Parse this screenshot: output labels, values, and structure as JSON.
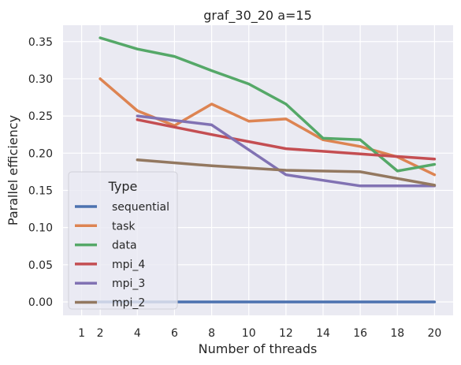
{
  "chart_data": {
    "type": "line",
    "title": "graf_30_20 a=15",
    "xlabel": "Number of threads",
    "ylabel": "Parallel efficiency",
    "xlim": [
      0,
      21
    ],
    "ylim": [
      -0.018,
      0.372
    ],
    "xticks": [
      1,
      2,
      4,
      6,
      8,
      10,
      12,
      14,
      16,
      18,
      20
    ],
    "yticks": [
      0.0,
      0.05,
      0.1,
      0.15,
      0.2,
      0.25,
      0.3,
      0.35
    ],
    "ytick_labels": [
      "0.00",
      "0.05",
      "0.10",
      "0.15",
      "0.20",
      "0.25",
      "0.30",
      "0.35"
    ],
    "grid": true,
    "legend": {
      "title": "Type",
      "placement": "lower-left"
    },
    "series": [
      {
        "name": "sequential",
        "color": "#4c72b0",
        "x": [
          1,
          2,
          4,
          6,
          8,
          10,
          12,
          14,
          16,
          18,
          20
        ],
        "y": [
          0,
          0,
          0,
          0,
          0,
          0,
          0,
          0,
          0,
          0,
          0
        ]
      },
      {
        "name": "task",
        "color": "#dd8452",
        "x": [
          2,
          4,
          6,
          8,
          10,
          12,
          14,
          16,
          18,
          20
        ],
        "y": [
          0.3,
          0.257,
          0.237,
          0.266,
          0.243,
          0.246,
          0.218,
          0.209,
          0.195,
          0.171
        ]
      },
      {
        "name": "data",
        "color": "#55a868",
        "x": [
          2,
          4,
          6,
          8,
          10,
          12,
          14,
          16,
          18,
          20
        ],
        "y": [
          0.355,
          0.34,
          0.33,
          0.311,
          0.293,
          0.266,
          0.22,
          0.218,
          0.176,
          0.185
        ]
      },
      {
        "name": "mpi_4",
        "color": "#c44e52",
        "x": [
          4,
          8,
          12,
          16,
          20
        ],
        "y": [
          0.245,
          0.225,
          0.206,
          0.199,
          0.192
        ]
      },
      {
        "name": "mpi_3",
        "color": "#8172b3",
        "x": [
          4,
          8,
          12,
          16,
          20
        ],
        "y": [
          0.25,
          0.238,
          0.171,
          0.156,
          0.156
        ]
      },
      {
        "name": "mpi_2",
        "color": "#937860",
        "x": [
          4,
          8,
          12,
          16,
          20
        ],
        "y": [
          0.191,
          0.183,
          0.177,
          0.175,
          0.157
        ]
      }
    ]
  }
}
